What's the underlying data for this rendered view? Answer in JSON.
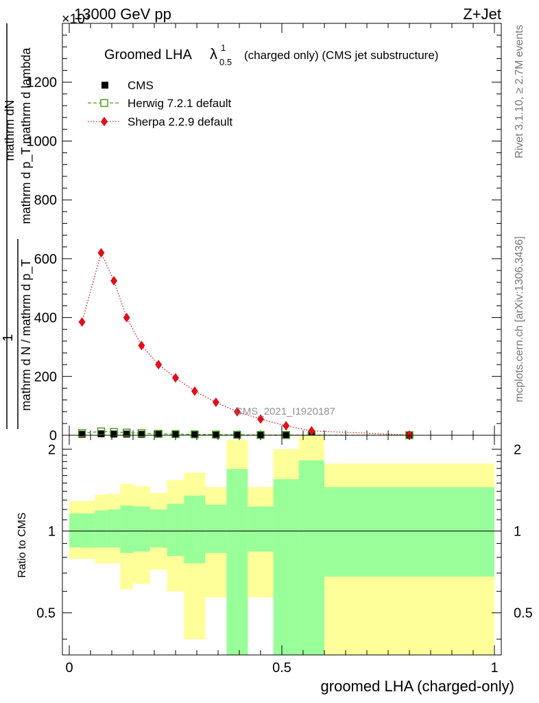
{
  "header": {
    "energy": "13000 GeV pp",
    "process": "Z+Jet",
    "scale_exponent_label": "×10³"
  },
  "side_labels": {
    "rivet": "Rivet 3.1.10, ≥ 2.7M events",
    "mcplots": "mcplots.cern.ch [arXiv:1306.3436]"
  },
  "watermark": "CMS_2021_I1920187",
  "colors": {
    "cms": "#000000",
    "herwig": "#4a9a1a",
    "sherpa": "#e0101a",
    "band_inner": "#99ff99",
    "band_outer": "#ffff99"
  },
  "chart_data": [
    {
      "type": "line",
      "title": "Groomed LHA λ¹₀.₅ (charged only) (CMS jet substructure)",
      "title_main": "Groomed LHA",
      "title_lambda": "λ",
      "title_sup": "1",
      "title_sub": "0.5",
      "title_rest": "(charged only) (CMS jet substructure)",
      "ylabel_top": "mathrm dN",
      "ylabel_mid": "mathrm d p_T mathrm d lambda",
      "ylabel_one": "1",
      "ylabel_bottom": "mathrm d N / mathrm d p_T",
      "xlim": [
        0,
        1
      ],
      "ylim": [
        0,
        1400
      ],
      "y_ticks": [
        0,
        200,
        400,
        600,
        800,
        1000,
        1200
      ],
      "y_tick_labels": [
        "0",
        "200",
        "400",
        "600",
        "800",
        "1000",
        "1200"
      ],
      "legend_position": "top-left",
      "series": [
        {
          "name": "CMS",
          "x": [
            0.03,
            0.075,
            0.105,
            0.135,
            0.17,
            0.21,
            0.25,
            0.295,
            0.345,
            0.395,
            0.45,
            0.51,
            0.57,
            0.8
          ],
          "y": [
            3,
            5,
            4,
            4,
            3,
            3,
            3,
            2,
            2,
            2,
            2,
            2,
            1,
            0.5
          ]
        },
        {
          "name": "Herwig 7.2.1 default",
          "x": [
            0.03,
            0.075,
            0.105,
            0.135,
            0.17,
            0.21,
            0.25,
            0.295,
            0.345,
            0.395,
            0.45,
            0.51,
            0.57,
            0.8
          ],
          "y": [
            7,
            13,
            11,
            9,
            7,
            5,
            4,
            3,
            2,
            1.5,
            1,
            0.8,
            0.5,
            0.2
          ]
        },
        {
          "name": "Sherpa 2.2.9 default",
          "x": [
            0.03,
            0.075,
            0.105,
            0.135,
            0.17,
            0.21,
            0.25,
            0.295,
            0.345,
            0.395,
            0.45,
            0.51,
            0.57,
            0.8
          ],
          "y": [
            385,
            620,
            525,
            400,
            305,
            240,
            195,
            150,
            112,
            80,
            55,
            32,
            15,
            1
          ]
        }
      ]
    },
    {
      "type": "area",
      "ylabel": "Ratio to CMS",
      "xlabel": "groomed LHA (charged-only)",
      "xlim": [
        0,
        1
      ],
      "ylim": [
        0.35,
        2.25
      ],
      "log_y": true,
      "y_ticks": [
        0.5,
        1,
        2
      ],
      "y_tick_labels": [
        "0.5",
        "1",
        "2"
      ],
      "x_ticks": [
        0,
        0.5,
        1
      ],
      "x_tick_labels": [
        "0",
        "0.5",
        "1"
      ],
      "reference_line": 1,
      "bins": [
        {
          "x0": 0.0,
          "x1": 0.06,
          "inner": [
            0.87,
            1.16
          ],
          "outer": [
            0.79,
            1.29
          ]
        },
        {
          "x0": 0.06,
          "x1": 0.09,
          "inner": [
            0.87,
            1.19
          ],
          "outer": [
            0.76,
            1.36
          ]
        },
        {
          "x0": 0.09,
          "x1": 0.12,
          "inner": [
            0.87,
            1.2
          ],
          "outer": [
            0.76,
            1.37
          ]
        },
        {
          "x0": 0.12,
          "x1": 0.15,
          "inner": [
            0.83,
            1.24
          ],
          "outer": [
            0.61,
            1.49
          ]
        },
        {
          "x0": 0.15,
          "x1": 0.19,
          "inner": [
            0.84,
            1.23
          ],
          "outer": [
            0.64,
            1.46
          ]
        },
        {
          "x0": 0.19,
          "x1": 0.23,
          "inner": [
            0.87,
            1.2
          ],
          "outer": [
            0.72,
            1.38
          ]
        },
        {
          "x0": 0.23,
          "x1": 0.27,
          "inner": [
            0.81,
            1.26
          ],
          "outer": [
            0.6,
            1.54
          ]
        },
        {
          "x0": 0.27,
          "x1": 0.32,
          "inner": [
            0.76,
            1.35
          ],
          "outer": [
            0.4,
            1.64
          ]
        },
        {
          "x0": 0.32,
          "x1": 0.37,
          "inner": [
            0.83,
            1.25
          ],
          "outer": [
            0.57,
            1.45
          ]
        },
        {
          "x0": 0.37,
          "x1": 0.42,
          "inner": [
            0.35,
            1.69
          ],
          "outer": [
            0.35,
            2.16
          ]
        },
        {
          "x0": 0.42,
          "x1": 0.48,
          "inner": [
            0.84,
            1.23
          ],
          "outer": [
            0.57,
            1.45
          ]
        },
        {
          "x0": 0.48,
          "x1": 0.54,
          "inner": [
            0.35,
            1.55
          ],
          "outer": [
            0.35,
            2.0
          ]
        },
        {
          "x0": 0.54,
          "x1": 0.6,
          "inner": [
            0.35,
            1.82
          ],
          "outer": [
            0.35,
            2.3
          ]
        },
        {
          "x0": 0.6,
          "x1": 1.0,
          "inner": [
            0.68,
            1.45
          ],
          "outer": [
            0.35,
            1.77
          ]
        }
      ]
    }
  ]
}
